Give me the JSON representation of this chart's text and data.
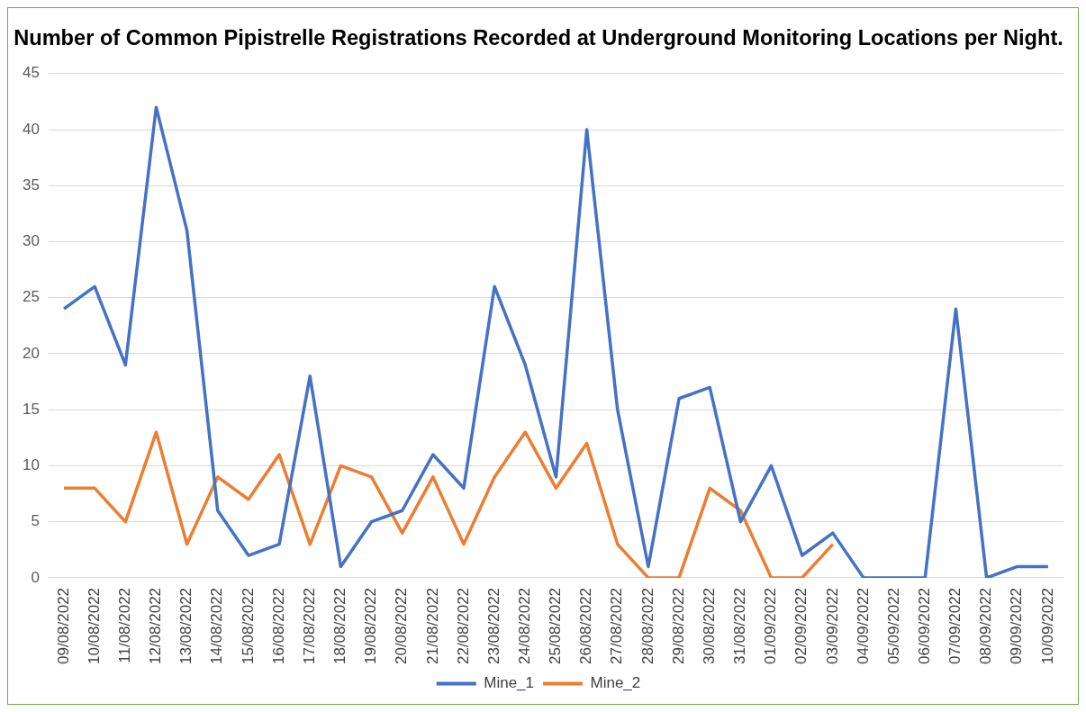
{
  "chart_data": {
    "type": "line",
    "title": "Number of Common Pipistrelle Registrations Recorded at Underground Monitoring Locations per Night.",
    "categories": [
      "09/08/2022",
      "10/08/2022",
      "11/08/2022",
      "12/08/2022",
      "13/08/2022",
      "14/08/2022",
      "15/08/2022",
      "16/08/2022",
      "17/08/2022",
      "18/08/2022",
      "19/08/2022",
      "20/08/2022",
      "21/08/2022",
      "22/08/2022",
      "23/08/2022",
      "24/08/2022",
      "25/08/2022",
      "26/08/2022",
      "27/08/2022",
      "28/08/2022",
      "29/08/2022",
      "30/08/2022",
      "31/08/2022",
      "01/09/2022",
      "02/09/2022",
      "03/09/2022",
      "04/09/2022",
      "05/09/2022",
      "06/09/2022",
      "07/09/2022",
      "08/09/2022",
      "09/09/2022",
      "10/09/2022"
    ],
    "series": [
      {
        "name": "Mine_1",
        "color": "#4472c4",
        "values": [
          24,
          26,
          19,
          42,
          31,
          6,
          2,
          3,
          18,
          1,
          5,
          6,
          11,
          8,
          26,
          19,
          9,
          40,
          15,
          1,
          16,
          17,
          5,
          10,
          2,
          4,
          0,
          0,
          0,
          24,
          0,
          1,
          1
        ]
      },
      {
        "name": "Mine_2",
        "color": "#ed7d31",
        "values": [
          8,
          8,
          5,
          13,
          3,
          9,
          7,
          11,
          3,
          10,
          9,
          4,
          9,
          3,
          9,
          13,
          8,
          12,
          3,
          0,
          0,
          8,
          6,
          0,
          0,
          3,
          null,
          null,
          null,
          null,
          null,
          null,
          null
        ]
      }
    ],
    "ylim": [
      0,
      45
    ],
    "yticks": [
      0,
      5,
      10,
      15,
      20,
      25,
      30,
      35,
      40,
      45
    ],
    "grid": "y",
    "legend": "bottom",
    "marker": "none",
    "line_style": "solid"
  }
}
